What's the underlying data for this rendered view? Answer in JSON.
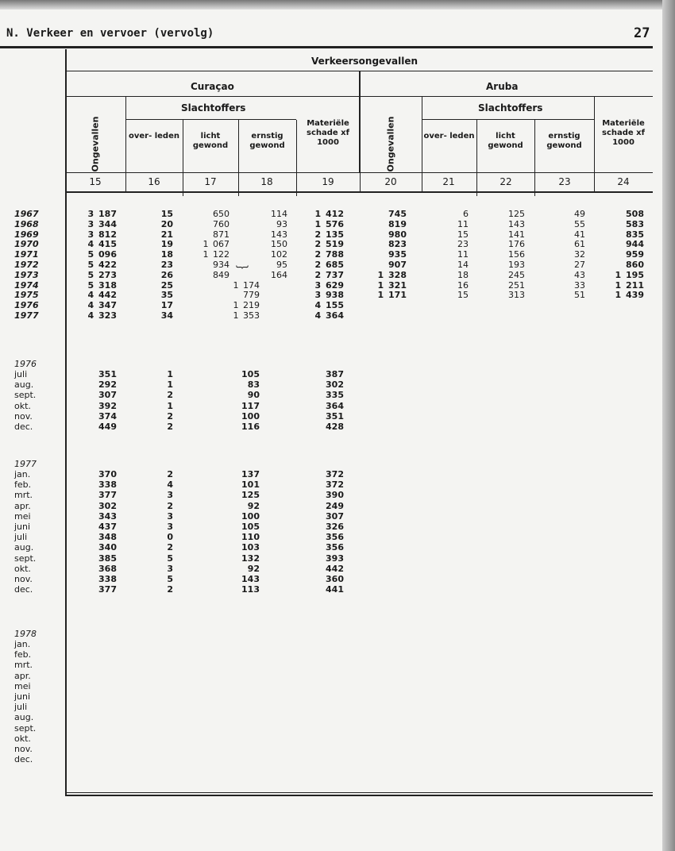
{
  "header": {
    "section": "N.  Verkeer en vervoer (vervolg)",
    "page_number": "27"
  },
  "table": {
    "title": "Verkeersongevallen",
    "groups": {
      "curacao": "Curaçao",
      "aruba": "Aruba",
      "slachtoffers": "Slachtoffers"
    },
    "columns": [
      {
        "no": "15",
        "label": "Ongevallen"
      },
      {
        "no": "16",
        "label": "over-\nleden"
      },
      {
        "no": "17",
        "label": "licht\ngewond"
      },
      {
        "no": "18",
        "label": "ernstig\ngewond"
      },
      {
        "no": "19",
        "label": "Materiële\nschade\nxf 1000"
      },
      {
        "no": "20",
        "label": "Ongevallen"
      },
      {
        "no": "21",
        "label": "over-\nleden"
      },
      {
        "no": "22",
        "label": "licht\ngewond"
      },
      {
        "no": "23",
        "label": "ernstig\ngewond"
      },
      {
        "no": "24",
        "label": "Materiële\nschade\nxf 1000"
      }
    ],
    "annual": [
      {
        "label": "1967",
        "v": [
          "3 187",
          "15",
          "650",
          "114",
          "1 412",
          "745",
          "6",
          "125",
          "49",
          "508"
        ]
      },
      {
        "label": "1968",
        "v": [
          "3 344",
          "20",
          "760",
          "93",
          "1 576",
          "819",
          "11",
          "143",
          "55",
          "583"
        ]
      },
      {
        "label": "1969",
        "v": [
          "3 812",
          "21",
          "871",
          "143",
          "2 135",
          "980",
          "15",
          "141",
          "41",
          "835"
        ]
      },
      {
        "label": "1970",
        "v": [
          "4 415",
          "19",
          "1 067",
          "150",
          "2 519",
          "823",
          "23",
          "176",
          "61",
          "944"
        ]
      },
      {
        "label": "1971",
        "v": [
          "5 096",
          "18",
          "1 122",
          "102",
          "2 788",
          "935",
          "11",
          "156",
          "32",
          "959"
        ]
      },
      {
        "label": "1972",
        "v": [
          "5 422",
          "23",
          "934",
          "95",
          "2 685",
          "907",
          "14",
          "193",
          "27",
          "860"
        ]
      },
      {
        "label": "1973",
        "v": [
          "5 273",
          "26",
          "849",
          "164",
          "2 737",
          "1 328",
          "18",
          "245",
          "43",
          "1 195"
        ],
        "brace": "⏟"
      },
      {
        "label": "1974",
        "v": [
          "5 318",
          "25",
          "",
          "",
          "3 629",
          "1 321",
          "16",
          "251",
          "33",
          "1 211"
        ],
        "merged": "1 174"
      },
      {
        "label": "1975",
        "v": [
          "4 442",
          "35",
          "",
          "",
          "3 938",
          "1 171",
          "15",
          "313",
          "51",
          "1 439"
        ],
        "merged": "779"
      },
      {
        "label": "1976",
        "v": [
          "4 347",
          "17",
          "",
          "",
          "4 155",
          "",
          "",
          "",
          "",
          ""
        ],
        "merged": "1 219"
      },
      {
        "label": "1977",
        "v": [
          "4 323",
          "34",
          "",
          "",
          "4 364",
          "",
          "",
          "",
          "",
          ""
        ],
        "merged": "1 353"
      }
    ],
    "monthly": [
      {
        "year": "1976",
        "rows": [
          {
            "label": "juli",
            "v": [
              "351",
              "1",
              "105",
              "387"
            ]
          },
          {
            "label": "aug.",
            "v": [
              "292",
              "1",
              "83",
              "302"
            ]
          },
          {
            "label": "sept.",
            "v": [
              "307",
              "2",
              "90",
              "335"
            ]
          },
          {
            "label": "okt.",
            "v": [
              "392",
              "1",
              "117",
              "364"
            ]
          },
          {
            "label": "nov.",
            "v": [
              "374",
              "2",
              "100",
              "351"
            ]
          },
          {
            "label": "dec.",
            "v": [
              "449",
              "2",
              "116",
              "428"
            ]
          }
        ]
      },
      {
        "year": "1977",
        "rows": [
          {
            "label": "jan.",
            "v": [
              "370",
              "2",
              "137",
              "372"
            ]
          },
          {
            "label": "feb.",
            "v": [
              "338",
              "4",
              "101",
              "372"
            ]
          },
          {
            "label": "mrt.",
            "v": [
              "377",
              "3",
              "125",
              "390"
            ]
          },
          {
            "label": "apr.",
            "v": [
              "302",
              "2",
              "92",
              "249"
            ]
          },
          {
            "label": "mei",
            "v": [
              "343",
              "3",
              "100",
              "307"
            ]
          },
          {
            "label": "juni",
            "v": [
              "437",
              "3",
              "105",
              "326"
            ]
          },
          {
            "label": "juli",
            "v": [
              "348",
              "0",
              "110",
              "356"
            ]
          },
          {
            "label": "aug.",
            "v": [
              "340",
              "2",
              "103",
              "356"
            ]
          },
          {
            "label": "sept.",
            "v": [
              "385",
              "5",
              "132",
              "393"
            ]
          },
          {
            "label": "okt.",
            "v": [
              "368",
              "3",
              "92",
              "442"
            ]
          },
          {
            "label": "nov.",
            "v": [
              "338",
              "5",
              "143",
              "360"
            ]
          },
          {
            "label": "dec.",
            "v": [
              "377",
              "2",
              "113",
              "441"
            ]
          }
        ]
      },
      {
        "year": "1978",
        "rows": [
          {
            "label": "jan.",
            "v": [
              "",
              "",
              "",
              ""
            ]
          },
          {
            "label": "feb.",
            "v": [
              "",
              "",
              "",
              ""
            ]
          },
          {
            "label": "mrt.",
            "v": [
              "",
              "",
              "",
              ""
            ]
          },
          {
            "label": "apr.",
            "v": [
              "",
              "",
              "",
              ""
            ]
          },
          {
            "label": "mei",
            "v": [
              "",
              "",
              "",
              ""
            ]
          },
          {
            "label": "juni",
            "v": [
              "",
              "",
              "",
              ""
            ]
          },
          {
            "label": "juli",
            "v": [
              "",
              "",
              "",
              ""
            ]
          },
          {
            "label": "aug.",
            "v": [
              "",
              "",
              "",
              ""
            ]
          },
          {
            "label": "sept.",
            "v": [
              "",
              "",
              "",
              ""
            ]
          },
          {
            "label": "okt.",
            "v": [
              "",
              "",
              "",
              ""
            ]
          },
          {
            "label": "nov.",
            "v": [
              "",
              "",
              "",
              ""
            ]
          },
          {
            "label": "dec.",
            "v": [
              "",
              "",
              "",
              ""
            ]
          }
        ]
      }
    ]
  }
}
